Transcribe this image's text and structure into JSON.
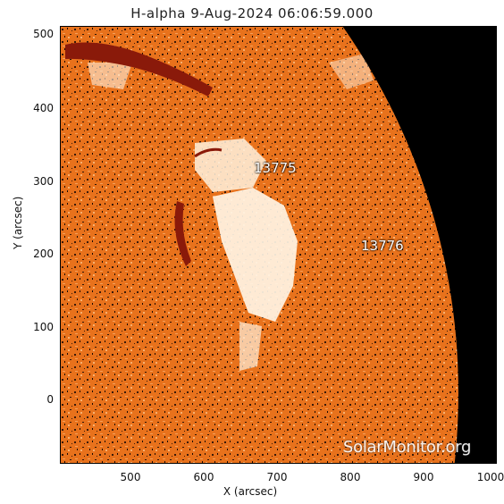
{
  "title": "H-alpha   9-Aug-2024 06:06:59.000",
  "x_axis_label": "X (arcsec)",
  "y_axis_label": "Y (arcsec)",
  "x_ticks": [
    "500",
    "600",
    "700",
    "800",
    "900",
    "1000"
  ],
  "y_ticks": [
    "500",
    "400",
    "300",
    "200",
    "100",
    "0"
  ],
  "region_labels": [
    "13775",
    "13776"
  ],
  "watermark": "SolarMonitor.org",
  "colors": {
    "disk": "#e8721c",
    "space": "#000000",
    "plage": "#fff4e4",
    "filament": "#8a1a0a"
  }
}
